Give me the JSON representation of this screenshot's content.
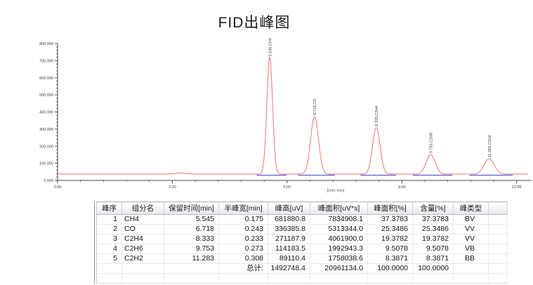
{
  "title": "FID出峰图",
  "chart_data": {
    "type": "line",
    "title": "FID出峰图",
    "xlabel": "[Unit: min]",
    "ylabel": "",
    "x_unit": "min",
    "xlim": [
      0,
      12.3
    ],
    "ylim": [
      0,
      800000
    ],
    "x_tick_values": [
      0,
      3,
      6,
      9,
      12
    ],
    "x_tick_labels": [
      "0.00",
      "3.00",
      "6.00",
      "9.00",
      "12.00"
    ],
    "x_minor_step": 0.6,
    "y_tick_values": [
      0,
      100000,
      200000,
      300000,
      400000,
      500000,
      600000,
      700000,
      800000
    ],
    "y_tick_labels": [
      "0.000",
      "100.000",
      "200.000",
      "300.000",
      "400.000",
      "500.000",
      "600.000",
      "700.000",
      "800.000"
    ],
    "y_minor_step": 20000,
    "grid": false,
    "legend_position": "none",
    "baseline_uv": 37000,
    "peaks": [
      {
        "name": "CH4",
        "label": "5.545,CH4",
        "retention_min": 5.545,
        "height_uv": 681880.8,
        "half_width_min": 0.175
      },
      {
        "name": "CO",
        "label": "6.718,CO",
        "retention_min": 6.718,
        "height_uv": 336385.8,
        "half_width_min": 0.243
      },
      {
        "name": "C2H4",
        "label": "8.333,C2H4",
        "retention_min": 8.333,
        "height_uv": 271187.9,
        "half_width_min": 0.233
      },
      {
        "name": "C2H6",
        "label": "9.753,C2H6",
        "retention_min": 9.753,
        "height_uv": 114183.5,
        "half_width_min": 0.273
      },
      {
        "name": "C2H2",
        "label": "11.283,C2H2",
        "retention_min": 11.283,
        "height_uv": 89110.4,
        "half_width_min": 0.308
      }
    ],
    "artifacts": [
      {
        "retention_min": 3.22,
        "height_uv": 6500,
        "half_width_min": 0.35
      }
    ],
    "colors": {
      "trace": "#ef8183",
      "integration_baseline": "#6565d6",
      "axis": "#4a4a4a",
      "tick_text": "#3a3a3a",
      "unit_text": "#5a5a5a",
      "peak_label_text": "#3c3c3c"
    }
  },
  "table": {
    "headers": [
      "峰序",
      "组分名",
      "保留时间[min]",
      "半峰宽[min]",
      "峰高[uV]",
      "峰面积[uV*s]",
      "峰面积[%]",
      "含量[%]",
      "峰类型",
      ""
    ],
    "rows": [
      [
        "1",
        "CH4",
        "5.545",
        "0.175",
        "681880.8",
        "7834908.1",
        "37.3783",
        "37.3783",
        "BV",
        ""
      ],
      [
        "2",
        "CO",
        "6.718",
        "0.243",
        "336385.8",
        "5313344.0",
        "25.3486",
        "25.3486",
        "VV",
        ""
      ],
      [
        "3",
        "C2H4",
        "8.333",
        "0.233",
        "271187.9",
        "4061900.0",
        "19.3782",
        "19.3782",
        "VV",
        ""
      ],
      [
        "4",
        "C2H6",
        "9.753",
        "0.273",
        "114183.5",
        "1992943.3",
        "9.5078",
        "9.5078",
        "VB",
        ""
      ],
      [
        "5",
        "C2H2",
        "11.283",
        "0.308",
        "89110.4",
        "1758038.6",
        "8.3871",
        "8.3871",
        "BB",
        ""
      ]
    ],
    "total_row": [
      "",
      "",
      "",
      "总计:",
      "1492748.4",
      "20961134.0",
      "100.0000",
      "100.0000",
      "",
      ""
    ]
  }
}
